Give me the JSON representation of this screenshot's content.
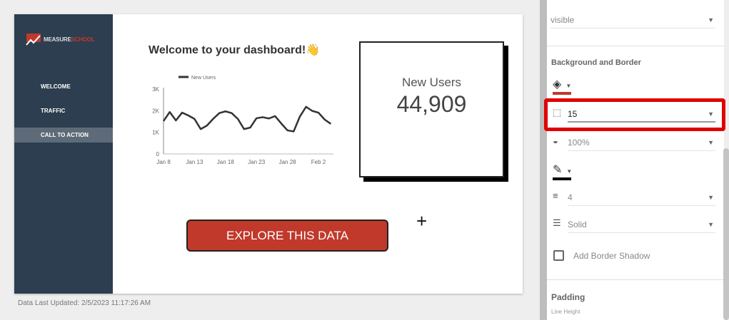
{
  "sidebar": {
    "logo": {
      "part1": "MEASURE",
      "part2": "SCHOOL"
    },
    "items": [
      {
        "label": "WELCOME"
      },
      {
        "label": "TRAFFIC"
      },
      {
        "label": "CALL TO ACTION",
        "active": true
      }
    ]
  },
  "main": {
    "title": "Welcome to your dashboard!",
    "title_emoji": "👋",
    "scorecard": {
      "label": "New Users",
      "value": "44,909"
    },
    "cta_label": "EXPLORE THIS DATA"
  },
  "footer": {
    "updated": "Data Last Updated: 2/5/2023 11:17:26 AM"
  },
  "panel": {
    "visibility": {
      "value": "visible"
    },
    "bg_border": {
      "heading": "Background and Border",
      "fill_color": "#c0392b",
      "radius": "15",
      "opacity": "100%",
      "border_color": "#000000",
      "border_weight": "4",
      "border_style": "Solid",
      "shadow_label": "Add Border Shadow",
      "shadow_checked": false
    },
    "padding": {
      "heading": "Padding",
      "line_height_label": "Line Height"
    }
  },
  "accent": "#c0392b",
  "chart_data": {
    "type": "line",
    "legend": [
      "New Users"
    ],
    "legend_position": "top-left",
    "x_ticks": [
      "Jan 8",
      "Jan 13",
      "Jan 18",
      "Jan 23",
      "Jan 28",
      "Feb 2"
    ],
    "y_ticks": [
      "0",
      "1K",
      "2K",
      "3K"
    ],
    "ylim": [
      0,
      3000
    ],
    "x_start": "2023-01-08",
    "series": [
      {
        "name": "New Users",
        "values": [
          1520,
          1940,
          1550,
          1910,
          1780,
          1620,
          1150,
          1310,
          1620,
          1890,
          1970,
          1890,
          1620,
          1150,
          1220,
          1650,
          1700,
          1640,
          1750,
          1410,
          1090,
          1040,
          1730,
          2180,
          1990,
          1910,
          1590,
          1390
        ]
      }
    ]
  }
}
